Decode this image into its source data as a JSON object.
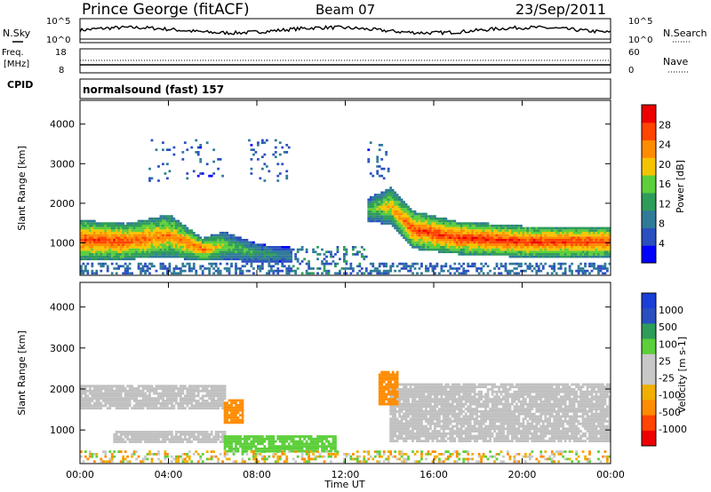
{
  "header": {
    "site": "Prince George (fitACF)",
    "beam": "Beam 07",
    "date": "23/Sep/2011"
  },
  "nsky_panel": {
    "left_label": "N.Sky",
    "right_label": "N.Search",
    "left_ticks": [
      "10^5",
      "10^0"
    ],
    "right_ticks": [
      "10^5",
      "10^0"
    ]
  },
  "freq_panel": {
    "left_label_1": "Freq.",
    "left_label_2": "[MHz]",
    "right_label": "Nave",
    "left_ticks": [
      "18",
      "8"
    ],
    "right_ticks": [
      "60",
      "0"
    ]
  },
  "cpid_panel": {
    "label": "CPID",
    "text": "normalsound (fast) 157"
  },
  "colors": {
    "power_scale": [
      "#0000ff",
      "#2a4fc0",
      "#2f7a98",
      "#2e9c5a",
      "#5ccf3a",
      "#f5c400",
      "#ff8c00",
      "#ff4500",
      "#ee0000"
    ],
    "velocity_scale": [
      "#ee0000",
      "#ff4500",
      "#ff8c00",
      "#f0b000",
      "#c8c8c8",
      "#c8c8c8",
      "#5ccf3a",
      "#2e9c5a",
      "#2a4fc0",
      "#1a3fd8"
    ],
    "ground_scatter": "#c0c0c0"
  },
  "chart_data": [
    {
      "type": "heatmap",
      "name": "power",
      "ylabel": "Slant Range [km]",
      "xlabel": "Time UT",
      "x_ticks": [
        "00:00",
        "04:00",
        "08:00",
        "12:00",
        "16:00",
        "20:00",
        "00:00"
      ],
      "y_ticks": [
        "1000",
        "2000",
        "3000",
        "4000"
      ],
      "xlim": [
        0,
        24
      ],
      "ylim": [
        180,
        4600
      ],
      "colorbar_label": "Power [dB]",
      "colorbar_ticks": [
        "4",
        "8",
        "12",
        "16",
        "20",
        "24",
        "28"
      ],
      "colorbar_range": [
        0,
        30
      ],
      "bands": [
        {
          "t": 0,
          "center": 1050,
          "halfwidth": 420,
          "level": 26
        },
        {
          "t": 2,
          "center": 1000,
          "halfwidth": 380,
          "level": 26
        },
        {
          "t": 4,
          "center": 1150,
          "halfwidth": 450,
          "level": 22
        },
        {
          "t": 5.5,
          "center": 800,
          "halfwidth": 250,
          "level": 24
        },
        {
          "t": 6.5,
          "center": 900,
          "halfwidth": 300,
          "level": 16
        },
        {
          "t": 8,
          "center": 700,
          "halfwidth": 200,
          "level": 12
        },
        {
          "t": 10,
          "center": 650,
          "halfwidth": 150,
          "level": 8
        },
        {
          "t": 11.5,
          "center": 620,
          "halfwidth": 150,
          "level": 6
        },
        {
          "t": 13,
          "center": 1800,
          "halfwidth": 250,
          "level": 14
        },
        {
          "t": 14,
          "center": 1900,
          "halfwidth": 400,
          "level": 20
        },
        {
          "t": 15,
          "center": 1300,
          "halfwidth": 400,
          "level": 26
        },
        {
          "t": 17,
          "center": 1100,
          "halfwidth": 350,
          "level": 27
        },
        {
          "t": 20,
          "center": 1000,
          "halfwidth": 330,
          "level": 27
        },
        {
          "t": 24,
          "center": 1000,
          "halfwidth": 330,
          "level": 26
        }
      ]
    },
    {
      "type": "heatmap",
      "name": "velocity",
      "ylabel": "Slant Range [km]",
      "xlabel": "Time UT",
      "x_ticks": [
        "00:00",
        "04:00",
        "08:00",
        "12:00",
        "16:00",
        "20:00",
        "00:00"
      ],
      "y_ticks": [
        "1000",
        "2000",
        "3000",
        "4000"
      ],
      "xlim": [
        0,
        24
      ],
      "ylim": [
        180,
        4600
      ],
      "colorbar_label": "Velocity [m s-1]",
      "colorbar_ticks": [
        "1000",
        "500",
        "100",
        "25",
        "-25",
        "-100",
        "-500",
        "-1000"
      ],
      "regions": [
        {
          "label": "ground scatter upper",
          "t0": 0,
          "t1": 6.5,
          "r0": 1500,
          "r1": 2100,
          "class": "gs"
        },
        {
          "label": "ground scatter lower",
          "t0": 1.5,
          "t1": 6.5,
          "r0": 680,
          "r1": 950,
          "class": "gs"
        },
        {
          "label": "orange patch",
          "t0": 6.5,
          "t1": 7.3,
          "r0": 1150,
          "r1": 1700,
          "class": "-300"
        },
        {
          "label": "green band",
          "t0": 6.5,
          "t1": 11.5,
          "r0": 450,
          "r1": 850,
          "class": "80"
        },
        {
          "label": "ground scatter right",
          "t0": 14,
          "t1": 24,
          "r0": 700,
          "r1": 2100,
          "class": "gs"
        },
        {
          "label": "orange 14h",
          "t0": 13.5,
          "t1": 14.3,
          "r0": 1600,
          "r1": 2400,
          "class": "-300"
        }
      ]
    }
  ]
}
